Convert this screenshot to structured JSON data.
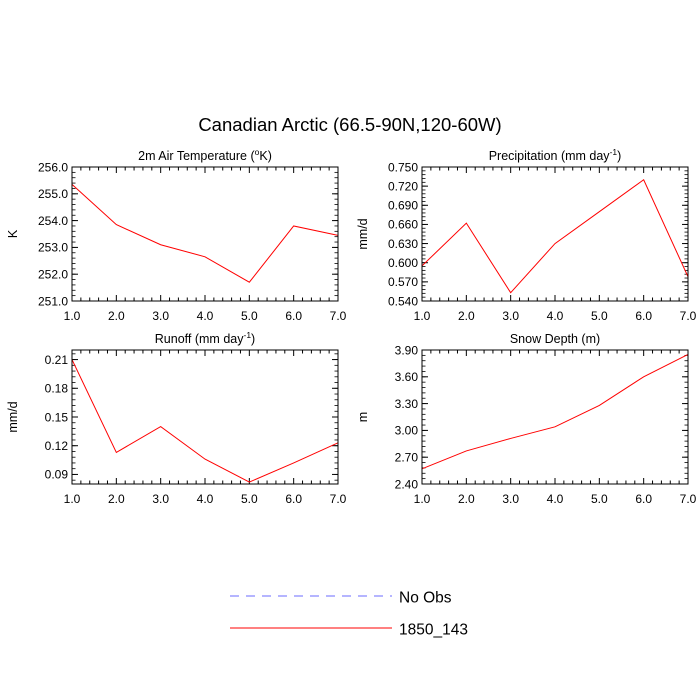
{
  "figure": {
    "title": "Canadian Arctic (66.5-90N,120-60W)"
  },
  "legend": {
    "placement": "bottom-center",
    "entries": [
      {
        "label": "No Obs",
        "color": "#6b6bff",
        "dash": "dashed"
      },
      {
        "label": "1850_143",
        "color": "#ff0000",
        "dash": "solid"
      }
    ]
  },
  "chart_data": [
    {
      "type": "line",
      "title_main": "2m Air Temperature (",
      "title_sup": "o",
      "title_end": "K)",
      "ylabel": "K",
      "x": [
        1.0,
        2.0,
        3.0,
        4.0,
        5.0,
        6.0,
        7.0
      ],
      "xlim": [
        1.0,
        7.0
      ],
      "ylim": [
        251.0,
        256.0
      ],
      "yticks": [
        251.0,
        252.0,
        253.0,
        254.0,
        255.0,
        256.0
      ],
      "yminor": 0.2,
      "ytick_decimals": 1,
      "series": [
        {
          "name": "1850_143",
          "color": "#ff0000",
          "values": [
            255.35,
            253.85,
            253.1,
            252.65,
            251.7,
            253.8,
            253.45
          ]
        }
      ]
    },
    {
      "type": "line",
      "title_main": "Precipitation (mm day",
      "title_sup": "-1",
      "title_end": ")",
      "ylabel": "mm/d",
      "x": [
        1.0,
        2.0,
        3.0,
        4.0,
        5.0,
        6.0,
        7.0
      ],
      "xlim": [
        1.0,
        7.0
      ],
      "ylim": [
        0.54,
        0.75
      ],
      "yticks": [
        0.54,
        0.57,
        0.6,
        0.63,
        0.66,
        0.69,
        0.72,
        0.75
      ],
      "yminor": 0.006,
      "ytick_decimals": 3,
      "series": [
        {
          "name": "1850_143",
          "color": "#ff0000",
          "values": [
            0.595,
            0.662,
            0.553,
            0.63,
            0.68,
            0.73,
            0.578
          ]
        }
      ]
    },
    {
      "type": "line",
      "title_main": "Runoff (mm day",
      "title_sup": "-1",
      "title_end": ")",
      "ylabel": "mm/d",
      "x": [
        1.0,
        2.0,
        3.0,
        4.0,
        5.0,
        6.0,
        7.0
      ],
      "xlim": [
        1.0,
        7.0
      ],
      "ylim": [
        0.08,
        0.22
      ],
      "yticks": [
        0.09,
        0.12,
        0.15,
        0.18,
        0.21
      ],
      "yminor": 0.006,
      "ytick_decimals": 2,
      "series": [
        {
          "name": "1850_143",
          "color": "#ff0000",
          "values": [
            0.21,
            0.113,
            0.14,
            0.106,
            0.082,
            0.102,
            0.123
          ]
        }
      ]
    },
    {
      "type": "line",
      "title_main": "Snow Depth (m)",
      "title_sup": "",
      "title_end": "",
      "ylabel": "m",
      "x": [
        1.0,
        2.0,
        3.0,
        4.0,
        5.0,
        6.0,
        7.0
      ],
      "xlim": [
        1.0,
        7.0
      ],
      "ylim": [
        2.4,
        3.9
      ],
      "yticks": [
        2.4,
        2.7,
        3.0,
        3.3,
        3.6,
        3.9
      ],
      "yminor": 0.06,
      "ytick_decimals": 2,
      "series": [
        {
          "name": "1850_143",
          "color": "#ff0000",
          "values": [
            2.57,
            2.77,
            2.91,
            3.04,
            3.28,
            3.6,
            3.85
          ]
        }
      ]
    }
  ]
}
